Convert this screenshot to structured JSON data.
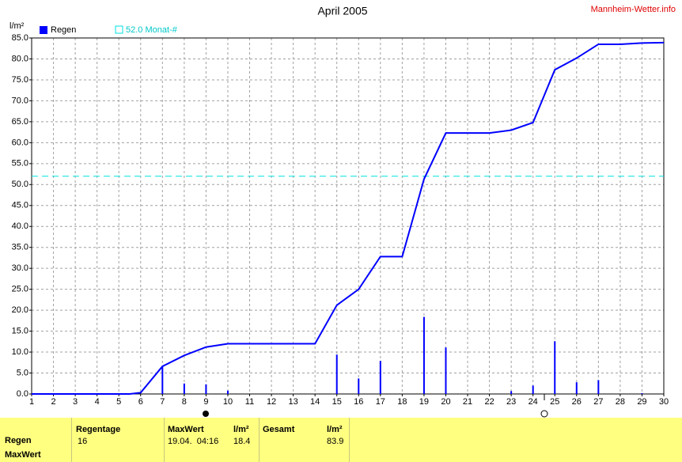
{
  "chart_data": {
    "type": "line",
    "title": "April 2005",
    "source": "Mannheim-Wetter.info",
    "y_label": "l/m²",
    "xlim": [
      1,
      30
    ],
    "xticks": [
      1,
      2,
      3,
      4,
      5,
      6,
      7,
      8,
      9,
      10,
      11,
      12,
      13,
      14,
      15,
      16,
      17,
      18,
      19,
      20,
      21,
      22,
      23,
      24,
      25,
      26,
      27,
      28,
      29,
      30
    ],
    "ylim": [
      0,
      85
    ],
    "yticks": [
      {
        "value": 0,
        "label": "0.0"
      },
      {
        "value": 5,
        "label": "5.0"
      },
      {
        "value": 10,
        "label": "10.0"
      },
      {
        "value": 15,
        "label": "15.0"
      },
      {
        "value": 20,
        "label": "20.0"
      },
      {
        "value": 25,
        "label": "25.0"
      },
      {
        "value": 30,
        "label": "30.0"
      },
      {
        "value": 35,
        "label": "35.0"
      },
      {
        "value": 40,
        "label": "40.0"
      },
      {
        "value": 45,
        "label": "45.0"
      },
      {
        "value": 50,
        "label": "50.0"
      },
      {
        "value": 55,
        "label": "55.0"
      },
      {
        "value": 60,
        "label": "60.0"
      },
      {
        "value": 65,
        "label": "65.0"
      },
      {
        "value": 70,
        "label": "70.0"
      },
      {
        "value": 75,
        "label": "75.0"
      },
      {
        "value": 80,
        "label": "80.0"
      },
      {
        "value": 85,
        "label": "85.0"
      }
    ],
    "grid": true,
    "series": [
      {
        "name": "Regen",
        "type": "bar",
        "color": "#0000ff",
        "x": [
          7,
          8,
          9,
          10,
          15,
          16,
          17,
          19,
          20,
          23,
          24,
          25,
          26,
          27,
          29
        ],
        "values": [
          6.6,
          2.5,
          2.3,
          0.8,
          9.4,
          3.7,
          7.9,
          18.4,
          11.1,
          0.7,
          2.0,
          12.6,
          2.8,
          3.3,
          0.2
        ]
      },
      {
        "type": "line",
        "color": "#0000ff",
        "x": [
          1,
          5.5,
          6,
          7,
          8,
          9,
          10,
          14,
          15,
          16,
          17,
          18,
          19,
          20,
          22,
          23,
          24,
          25,
          26,
          27,
          28,
          29,
          30
        ],
        "values": [
          0,
          0,
          0.3,
          6.6,
          9.2,
          11.2,
          12.0,
          12.0,
          21.2,
          25.0,
          32.8,
          32.8,
          51.3,
          62.3,
          62.3,
          63.0,
          64.8,
          77.4,
          80.2,
          83.5,
          83.5,
          83.8,
          83.9
        ]
      }
    ],
    "reference_line": {
      "value": 52.0,
      "label": "52.0 Monat-#",
      "color": "#00e0e0"
    }
  },
  "table": {
    "row_labels": [
      "Regen",
      "MaxWert"
    ],
    "columns": [
      {
        "header": "Regentage",
        "value": 16
      },
      {
        "header": "MaxWert",
        "value": "19.04.  04:16"
      },
      {
        "header": "l/m²",
        "value": 18.4
      },
      {
        "header": "Gesamt"
      },
      {
        "header": "l/m²",
        "value": 83.9
      }
    ]
  }
}
